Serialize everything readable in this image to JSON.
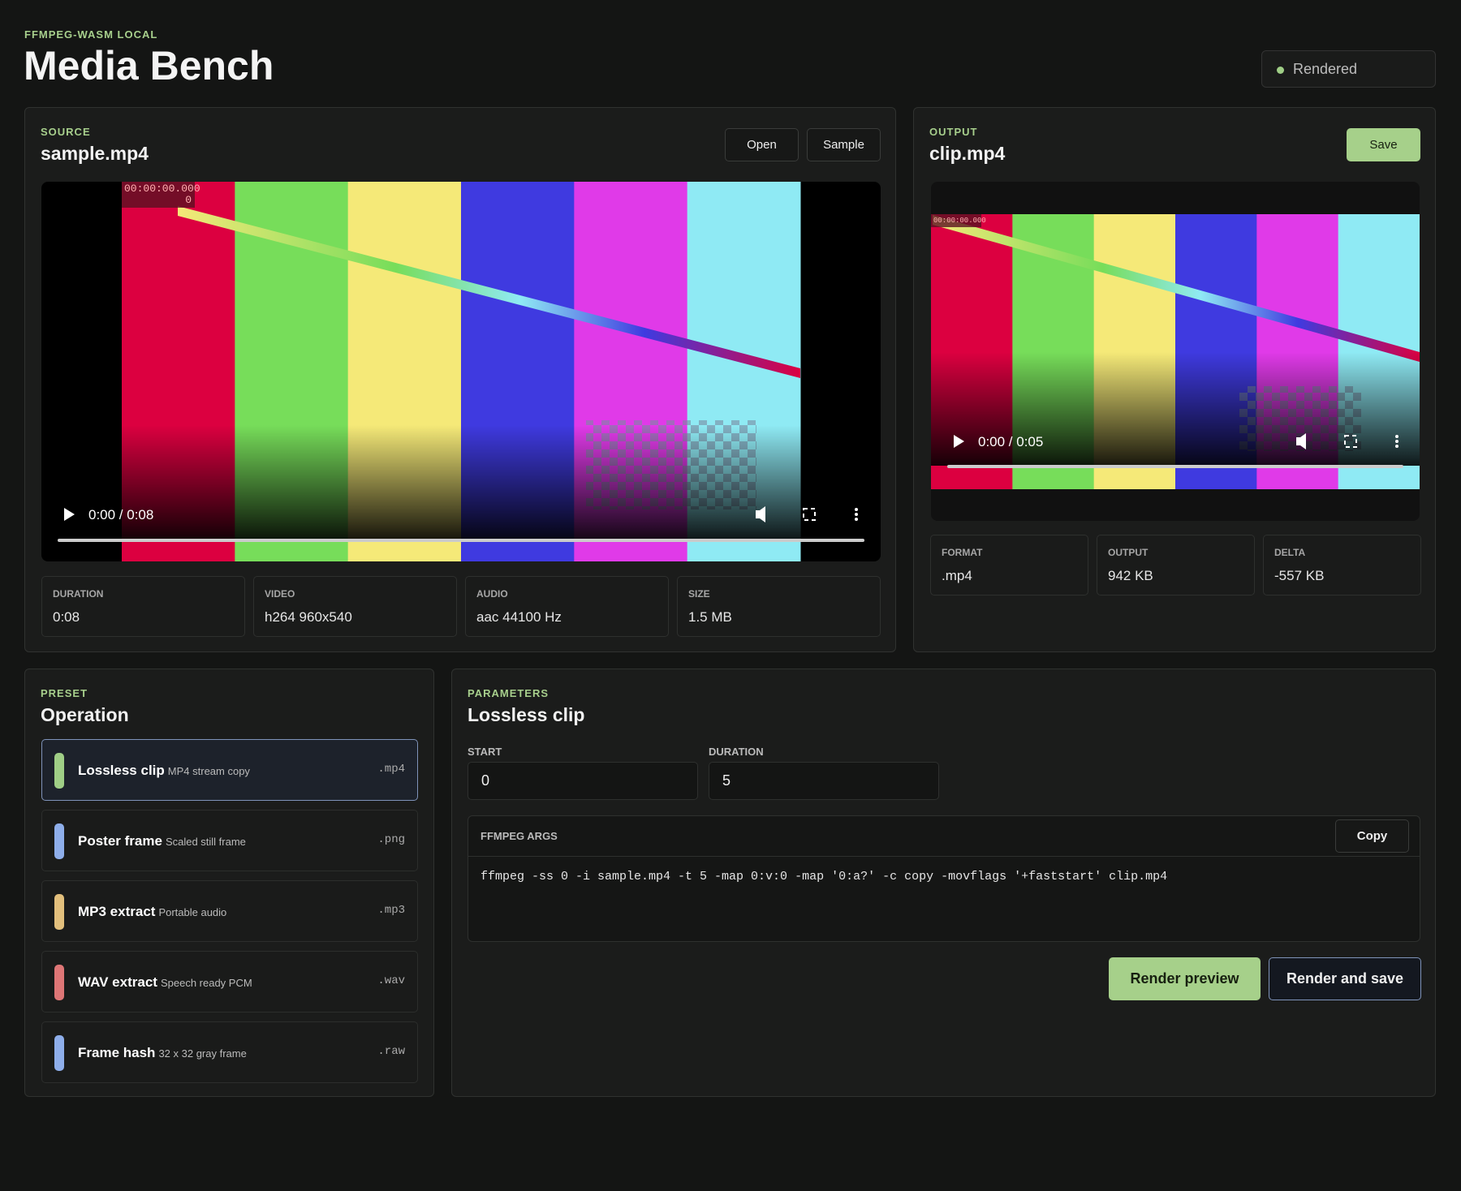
{
  "header": {
    "eyebrow": "FFMPEG-WASM LOCAL",
    "title": "Media Bench",
    "status": "Rendered"
  },
  "source": {
    "eyebrow": "SOURCE",
    "title": "sample.mp4",
    "buttons": [
      "Open",
      "Sample"
    ],
    "player": {
      "timestamp": "00:00:00.000",
      "frame": "0",
      "time": "0:00 / 0:08"
    },
    "stats": [
      {
        "label": "DURATION",
        "value": "0:08"
      },
      {
        "label": "VIDEO",
        "value": "h264 960x540"
      },
      {
        "label": "AUDIO",
        "value": "aac 44100 Hz"
      },
      {
        "label": "SIZE",
        "value": "1.5 MB"
      }
    ]
  },
  "output": {
    "eyebrow": "OUTPUT",
    "title": "clip.mp4",
    "button": "Save",
    "player": {
      "timestamp": "00:00:00.000",
      "time": "0:00 / 0:05"
    },
    "stats": [
      {
        "label": "FORMAT",
        "value": ".mp4"
      },
      {
        "label": "OUTPUT",
        "value": "942 KB"
      },
      {
        "label": "DELTA",
        "value": "-557 KB"
      }
    ]
  },
  "preset": {
    "eyebrow": "PRESET",
    "title": "Operation",
    "items": [
      {
        "name": "Lossless clip",
        "desc": "MP4 stream copy",
        "ext": ".mp4",
        "color": "#9fce86"
      },
      {
        "name": "Poster frame",
        "desc": "Scaled still frame",
        "ext": ".png",
        "color": "#8eaeea"
      },
      {
        "name": "MP3 extract",
        "desc": "Portable audio",
        "ext": ".mp3",
        "color": "#e2bf7c"
      },
      {
        "name": "WAV extract",
        "desc": "Speech ready PCM",
        "ext": ".wav",
        "color": "#de7676"
      },
      {
        "name": "Frame hash",
        "desc": "32 x 32 gray frame",
        "ext": ".raw",
        "color": "#8eaeea"
      }
    ]
  },
  "parameters": {
    "eyebrow": "PARAMETERS",
    "title": "Lossless clip",
    "fields": [
      {
        "label": "START",
        "value": "0"
      },
      {
        "label": "DURATION",
        "value": "5"
      }
    ],
    "args": {
      "label": "FFMPEG ARGS",
      "button": "Copy",
      "command": "ffmpeg -ss 0 -i sample.mp4 -t 5 -map 0:v:0 -map '0:a?' -c copy -movflags '+faststart' clip.mp4"
    },
    "actions": [
      "Render preview",
      "Render and save"
    ]
  }
}
